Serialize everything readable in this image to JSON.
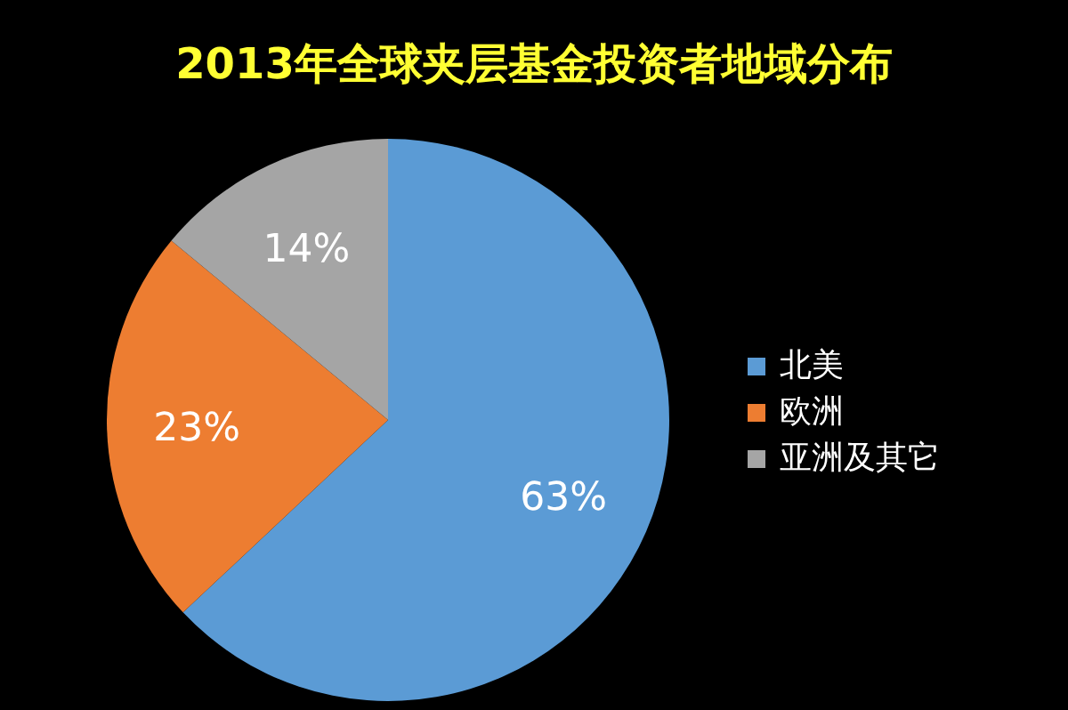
{
  "chart_data": {
    "type": "pie",
    "title": "2013年全球夹层基金投资者地域分布",
    "categories": [
      "北美",
      "欧洲",
      "亚洲及其它"
    ],
    "values": [
      63,
      23,
      14
    ],
    "colors": [
      "#5b9bd5",
      "#ed7d31",
      "#a5a5a5"
    ],
    "value_labels": [
      "63%",
      "23%",
      "14%"
    ],
    "legend": "right"
  }
}
